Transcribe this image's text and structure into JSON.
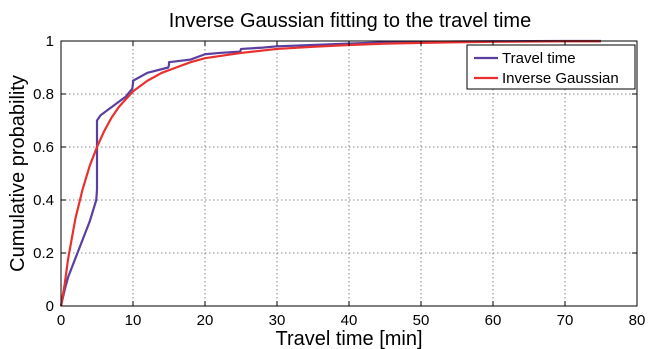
{
  "chart_data": {
    "type": "line",
    "title": "Inverse Gaussian fitting to the travel time",
    "xlabel": "Travel time [min]",
    "ylabel": "Cumulative probability",
    "xlim": [
      0,
      80
    ],
    "ylim": [
      0,
      1
    ],
    "xticks": [
      "0",
      "10",
      "20",
      "30",
      "40",
      "50",
      "60",
      "70",
      "80"
    ],
    "yticks": [
      "0",
      "0.2",
      "0.4",
      "0.6",
      "0.8",
      "1"
    ],
    "grid": true,
    "legend_position": "top-right",
    "series": [
      {
        "name": "Travel time",
        "color": "#5a3fa0",
        "x": [
          0,
          0.5,
          1,
          2,
          3,
          4,
          4.9,
          5,
          5,
          5.5,
          7,
          9,
          9.9,
          10,
          10,
          12,
          14.9,
          15,
          15,
          18,
          20,
          22,
          24.9,
          25,
          28,
          30,
          35,
          40,
          45,
          50,
          55,
          60,
          65,
          70,
          75
        ],
        "y": [
          0,
          0.06,
          0.11,
          0.18,
          0.25,
          0.32,
          0.4,
          0.44,
          0.7,
          0.72,
          0.75,
          0.79,
          0.82,
          0.84,
          0.85,
          0.88,
          0.9,
          0.91,
          0.92,
          0.93,
          0.95,
          0.955,
          0.96,
          0.97,
          0.975,
          0.98,
          0.985,
          0.99,
          0.995,
          0.997,
          0.998,
          0.999,
          0.9995,
          1.0,
          1.0
        ]
      },
      {
        "name": "Inverse Gaussian",
        "color": "#e8312f",
        "x": [
          0,
          0.5,
          1,
          2,
          3,
          4,
          5,
          6,
          7,
          8,
          9,
          10,
          12,
          14,
          16,
          18,
          20,
          25,
          30,
          35,
          40,
          45,
          50,
          55,
          60,
          65,
          70,
          75
        ],
        "y": [
          0,
          0.08,
          0.18,
          0.33,
          0.44,
          0.53,
          0.6,
          0.66,
          0.71,
          0.75,
          0.78,
          0.81,
          0.85,
          0.88,
          0.9,
          0.92,
          0.935,
          0.955,
          0.97,
          0.978,
          0.985,
          0.99,
          0.993,
          0.995,
          0.997,
          0.998,
          0.999,
          0.999
        ]
      }
    ]
  }
}
